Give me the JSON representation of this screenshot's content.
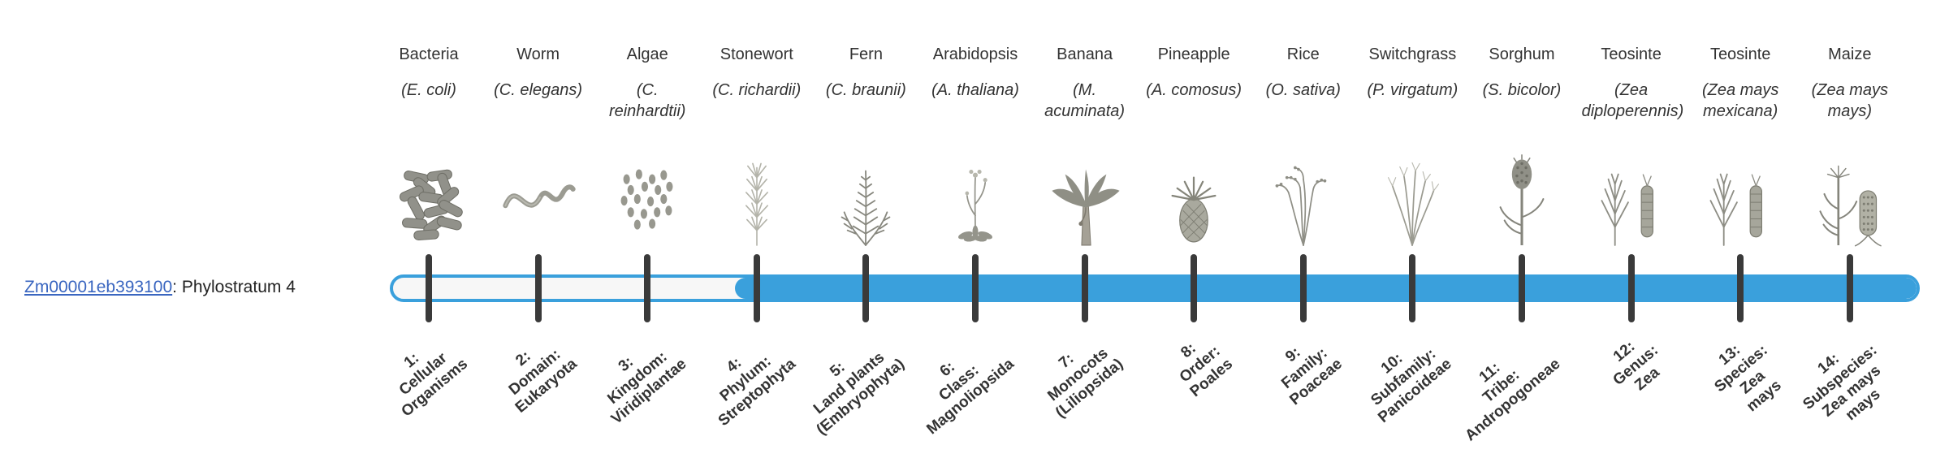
{
  "gene": {
    "id": "Zm00001eb393100",
    "suffix": ": Phylostratum 4",
    "phylostratum": 4
  },
  "colors": {
    "bar_fill": "#3aa0dc",
    "bar_empty": "#f7f7f7",
    "tick": "#3a3a3a",
    "link": "#3a66c0"
  },
  "organisms": [
    {
      "name": "Bacteria",
      "sci": "(E. coli)",
      "icon": "bacteria-icon",
      "icon_ref": "#sym-bacteria",
      "stratum_label": "1:\nCellular\nOrganisms"
    },
    {
      "name": "Worm",
      "sci": "(C. elegans)",
      "icon": "worm-icon",
      "icon_ref": "#sym-worm",
      "stratum_label": "2:\nDomain:\nEukaryota"
    },
    {
      "name": "Algae",
      "sci": "(C. reinhardtii)",
      "icon": "algae-icon",
      "icon_ref": "#sym-algae",
      "stratum_label": "3:\nKingdom:\nViridiplantae"
    },
    {
      "name": "Stonewort",
      "sci": "(C. richardii)",
      "icon": "stonewort-icon",
      "icon_ref": "#sym-stonewort",
      "stratum_label": "4:\nPhylum:\nStreptophyta"
    },
    {
      "name": "Fern",
      "sci": "(C. braunii)",
      "icon": "fern-icon",
      "icon_ref": "#sym-fern",
      "stratum_label": "5:\nLand plants\n(Embryophyta)"
    },
    {
      "name": "Arabidopsis",
      "sci": "(A. thaliana)",
      "icon": "arabidopsis-icon",
      "icon_ref": "#sym-arabidopsis",
      "stratum_label": "6:\nClass:\nMagnoliopsida"
    },
    {
      "name": "Banana",
      "sci": "(M. acuminata)",
      "icon": "banana-icon",
      "icon_ref": "#sym-banana",
      "stratum_label": "7:\nMonocots\n(Liliopsida)"
    },
    {
      "name": "Pineapple",
      "sci": "(A. comosus)",
      "icon": "pineapple-icon",
      "icon_ref": "#sym-pineapple",
      "stratum_label": "8:\nOrder:\nPoales"
    },
    {
      "name": "Rice",
      "sci": "(O. sativa)",
      "icon": "rice-icon",
      "icon_ref": "#sym-rice",
      "stratum_label": "9:\nFamily:\nPoaceae"
    },
    {
      "name": "Switchgrass",
      "sci": "(P. virgatum)",
      "icon": "switchgrass-icon",
      "icon_ref": "#sym-switchgrass",
      "stratum_label": "10:\nSubfamily:\nPanicoideae"
    },
    {
      "name": "Sorghum",
      "sci": "(S. bicolor)",
      "icon": "sorghum-icon",
      "icon_ref": "#sym-sorghum",
      "stratum_label": "11:\nTribe:\nAndropogoneae"
    },
    {
      "name": "Teosinte",
      "sci": "(Zea diploperennis)",
      "icon": "teosinte-icon",
      "icon_ref": "#sym-teosinte",
      "stratum_label": "12:\nGenus:\nZea"
    },
    {
      "name": "Teosinte",
      "sci": "(Zea mays mexicana)",
      "icon": "teosinte-icon",
      "icon_ref": "#sym-teosinte",
      "stratum_label": "13:\nSpecies:\nZea\nmays"
    },
    {
      "name": "Maize",
      "sci": "(Zea mays mays)",
      "icon": "maize-icon",
      "icon_ref": "#sym-maize",
      "stratum_label": "14:\nSubspecies:\nZea mays\nmays"
    }
  ]
}
